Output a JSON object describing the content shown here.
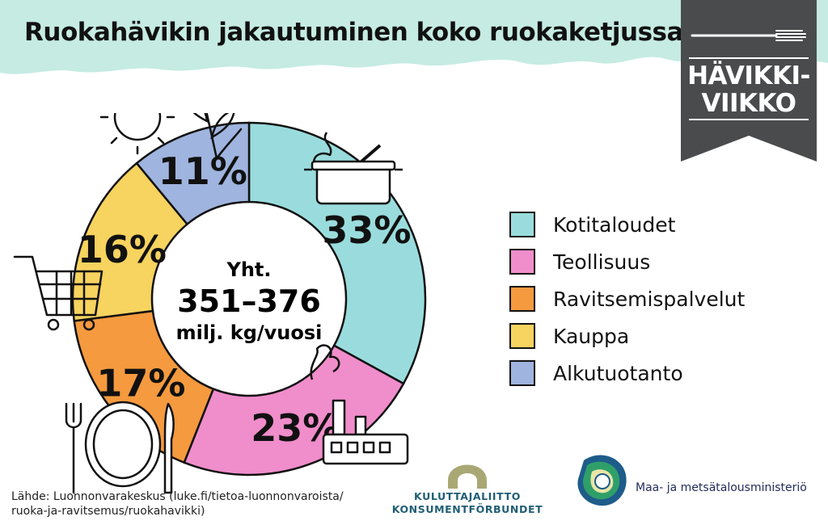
{
  "title": "Ruokahävikin jakautuminen koko ruokaketjussa",
  "badge": {
    "line1": "HÄVIKKI-",
    "line2": "VIIKKO"
  },
  "center": {
    "line1": "Yht.",
    "line2": "351–376",
    "line3": "milj. kg/vuosi"
  },
  "source": {
    "line1": "Lähde: Luonnonvarakeskus (luke.fi/tietoa-luonnonvaroista/",
    "line2": "ruoka-ja-ravitsemus/ruokahavikki)"
  },
  "org1": {
    "line1": "KULUTTAJALIITTO",
    "line2": "KONSUMENTFÖRBUNDET"
  },
  "org2": {
    "name": "Maa- ja metsätalousministeriö"
  },
  "chart_data": {
    "type": "pie",
    "variant": "donut",
    "title": "Ruokahävikin jakautuminen koko ruokaketjussa",
    "total_label": "351–376 milj. kg/vuosi",
    "legend_position": "right",
    "series": [
      {
        "name": "Kotitaloudet",
        "value": 33,
        "label": "33%",
        "color": "#9adcdd"
      },
      {
        "name": "Teollisuus",
        "value": 23,
        "label": "23%",
        "color": "#f08dcb"
      },
      {
        "name": "Ravitsemispalvelut",
        "value": 17,
        "label": "17%",
        "color": "#f59a3e"
      },
      {
        "name": "Kauppa",
        "value": 16,
        "label": "16%",
        "color": "#f7d35f"
      },
      {
        "name": "Alkutuotanto",
        "value": 11,
        "label": "11%",
        "color": "#9fb4de"
      }
    ]
  },
  "colors": {
    "banner": "#c5ebe2",
    "badge": "#4a4b4d",
    "org1_arc": "#a9a874",
    "org1_text": "#1f5e74"
  },
  "icons": [
    "sun-icon",
    "plant-icon",
    "cooking-pot-icon",
    "shopping-cart-icon",
    "factory-icon",
    "fork-icon",
    "plate-icon",
    "knife-icon",
    "banner-fork-icon",
    "finland-lion-icon"
  ]
}
